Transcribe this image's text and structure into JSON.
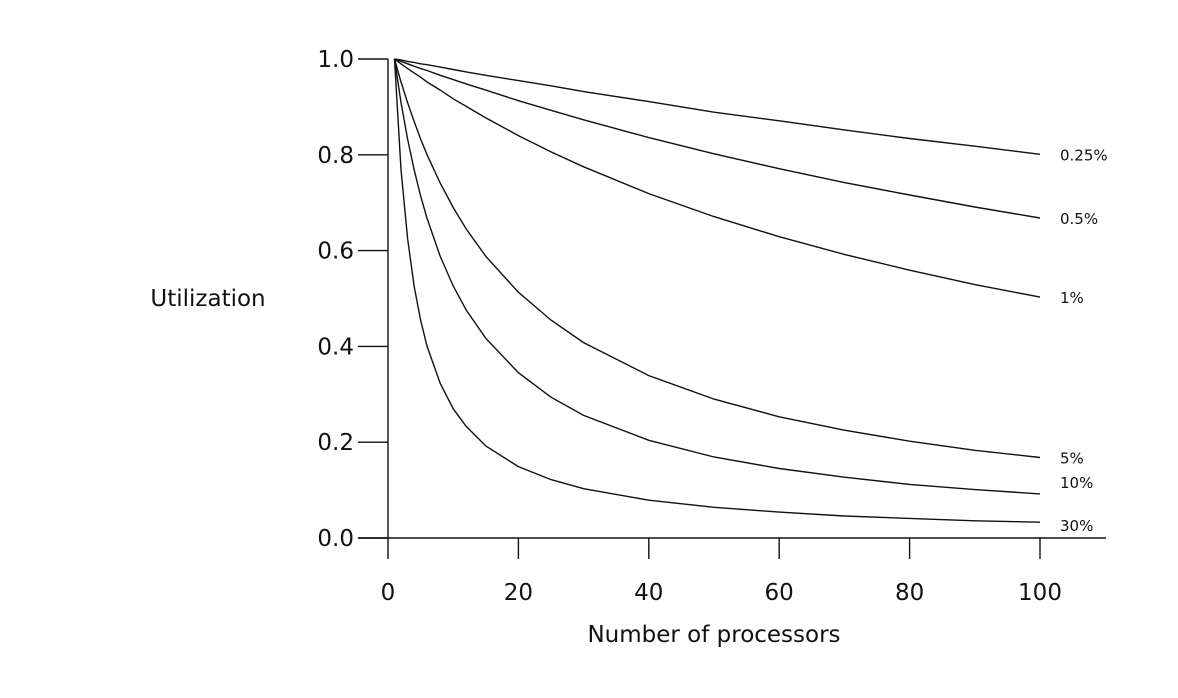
{
  "chart_data": {
    "type": "line",
    "title": "",
    "xlabel": "Number of processors",
    "ylabel": "Utilization",
    "xlim": [
      0,
      100
    ],
    "ylim": [
      0,
      1.0
    ],
    "x_ticks": [
      0,
      20,
      40,
      60,
      80,
      100
    ],
    "y_ticks": [
      0.0,
      0.2,
      0.4,
      0.6,
      0.8,
      1.0
    ],
    "x_tick_labels": [
      "0",
      "20",
      "40",
      "60",
      "80",
      "100"
    ],
    "y_tick_labels": [
      "0.0",
      "0.2",
      "0.4",
      "0.6",
      "0.8",
      "1.0"
    ],
    "grid": false,
    "legend": "labels at right end of each line",
    "x": [
      1,
      2,
      3,
      4,
      5,
      6,
      8,
      10,
      12,
      15,
      20,
      25,
      30,
      40,
      50,
      60,
      70,
      80,
      90,
      100
    ],
    "series": [
      {
        "name": "0.25%",
        "values": [
          1.0,
          0.998,
          0.995,
          0.993,
          0.99,
          0.988,
          0.983,
          0.978,
          0.973,
          0.966,
          0.955,
          0.944,
          0.932,
          0.911,
          0.889,
          0.871,
          0.852,
          0.834,
          0.818,
          0.801
        ]
      },
      {
        "name": "0.5%",
        "values": [
          1.0,
          0.995,
          0.99,
          0.985,
          0.98,
          0.976,
          0.966,
          0.957,
          0.948,
          0.935,
          0.913,
          0.893,
          0.873,
          0.836,
          0.802,
          0.771,
          0.742,
          0.716,
          0.691,
          0.668
        ]
      },
      {
        "name": "1%",
        "values": [
          1.0,
          0.99,
          0.98,
          0.971,
          0.962,
          0.952,
          0.935,
          0.917,
          0.901,
          0.877,
          0.84,
          0.806,
          0.775,
          0.719,
          0.671,
          0.629,
          0.592,
          0.559,
          0.529,
          0.503
        ]
      },
      {
        "name": "5%",
        "values": [
          1.0,
          0.952,
          0.909,
          0.87,
          0.833,
          0.8,
          0.741,
          0.69,
          0.645,
          0.588,
          0.513,
          0.455,
          0.408,
          0.339,
          0.29,
          0.253,
          0.225,
          0.202,
          0.183,
          0.168
        ]
      },
      {
        "name": "10%",
        "values": [
          1.0,
          0.909,
          0.833,
          0.769,
          0.714,
          0.667,
          0.588,
          0.526,
          0.476,
          0.417,
          0.345,
          0.294,
          0.256,
          0.204,
          0.169,
          0.145,
          0.127,
          0.112,
          0.101,
          0.092
        ]
      },
      {
        "name": "30%",
        "values": [
          1.0,
          0.769,
          0.625,
          0.526,
          0.455,
          0.4,
          0.323,
          0.27,
          0.233,
          0.192,
          0.149,
          0.122,
          0.103,
          0.079,
          0.064,
          0.054,
          0.046,
          0.041,
          0.036,
          0.033
        ]
      }
    ]
  }
}
